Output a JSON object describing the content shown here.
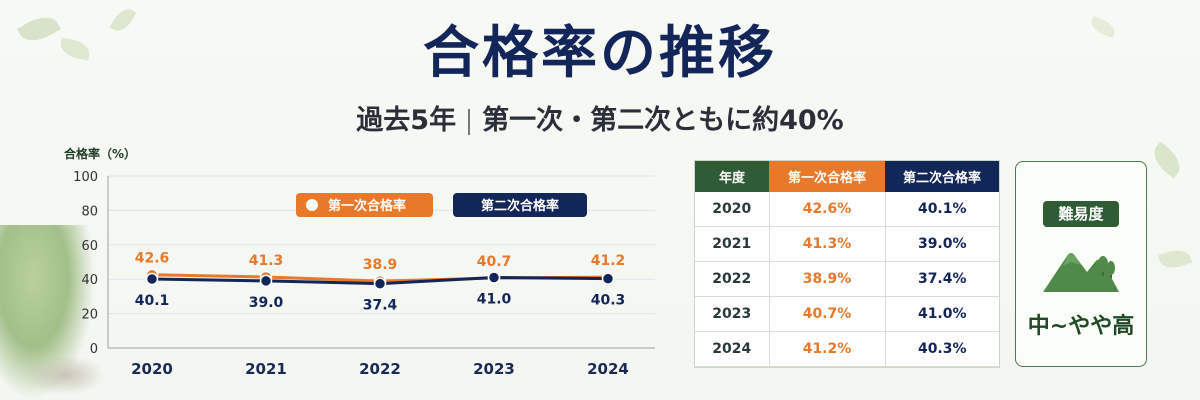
{
  "header": {
    "title": "合格率の推移",
    "subtitle_left": "過去5年",
    "subtitle_right": "第一次・第二次ともに約40%"
  },
  "chart_data": {
    "type": "line",
    "ylabel": "合格率（%）",
    "ylim": [
      0,
      100
    ],
    "yticks": [
      0,
      20,
      40,
      60,
      80,
      100
    ],
    "categories": [
      "2020",
      "2021",
      "2022",
      "2023",
      "2024"
    ],
    "series": [
      {
        "name": "第一次合格率",
        "values": [
          42.6,
          41.3,
          38.9,
          40.7,
          41.2
        ],
        "color": "#e8782a"
      },
      {
        "name": "第二次合格率",
        "values": [
          40.1,
          39.0,
          37.4,
          41.0,
          40.3
        ],
        "color": "#12265a"
      }
    ],
    "grid": true,
    "legend": "top-center"
  },
  "table": {
    "headers": [
      "年度",
      "第一次合格率",
      "第二次合格率"
    ],
    "rows": [
      [
        "2020",
        "42.6%",
        "40.1%"
      ],
      [
        "2021",
        "41.3%",
        "39.0%"
      ],
      [
        "2022",
        "38.9%",
        "37.4%"
      ],
      [
        "2023",
        "40.7%",
        "41.0%"
      ],
      [
        "2024",
        "41.2%",
        "40.3%"
      ]
    ]
  },
  "difficulty": {
    "label": "難易度",
    "value": "中~やや高",
    "icon": "mountain-icon"
  },
  "colors": {
    "first": "#e8782a",
    "second": "#12265a",
    "accent_green": "#2f5b35"
  }
}
